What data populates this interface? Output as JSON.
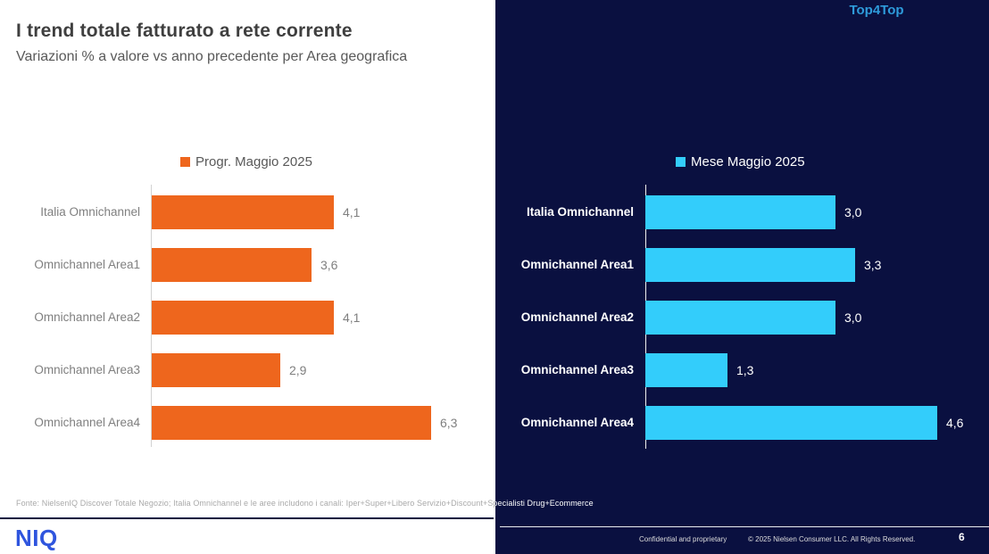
{
  "slide": {
    "title": "I trend totale fatturato a rete corrente",
    "subtitle": "Variazioni % a valore vs anno precedente per Area geografica",
    "badge": "Top4Top",
    "page_number": "6"
  },
  "chart_data": [
    {
      "type": "bar",
      "orientation": "horizontal",
      "title": "Progr. Maggio 2025",
      "legend": "Progr. Maggio 2025",
      "legend_position": "top",
      "categories": [
        "Italia Omnichannel",
        "Omnichannel Area1",
        "Omnichannel Area2",
        "Omnichannel Area3",
        "Omnichannel Area4"
      ],
      "values": [
        4.1,
        3.6,
        4.1,
        2.9,
        6.3
      ],
      "value_labels": [
        "4,1",
        "3,6",
        "4,1",
        "2,9",
        "6,3"
      ],
      "bar_color": "#EE661D",
      "xlabel": "",
      "ylabel": "",
      "xlim": [
        0,
        7
      ],
      "grid": false
    },
    {
      "type": "bar",
      "orientation": "horizontal",
      "title": "Mese Maggio 2025",
      "legend": "Mese Maggio 2025",
      "legend_position": "top",
      "categories": [
        "Italia Omnichannel",
        "Omnichannel Area1",
        "Omnichannel Area2",
        "Omnichannel Area3",
        "Omnichannel Area4"
      ],
      "values": [
        3.0,
        3.3,
        3.0,
        1.3,
        4.6
      ],
      "value_labels": [
        "3,0",
        "3,3",
        "3,0",
        "1,3",
        "4,6"
      ],
      "bar_color": "#33CDFB",
      "xlabel": "",
      "ylabel": "",
      "xlim": [
        0,
        5
      ],
      "grid": false
    }
  ],
  "footer": {
    "fonte": "Fonte: NielsenIQ Discover Totale Negozio; Italia Omnichannel e le aree includono i canali: Iper+Super+Libero Servizio+Discount+Specialisti Drug+Ecommerce",
    "confidential": "Confidential and proprietary",
    "copyright": "© 2025 Nielsen Consumer LLC. All Rights Reserved.",
    "logo": "NIQ"
  },
  "colors": {
    "left_bar_orange": "#EE661D",
    "right_bar_blue": "#33CDFB",
    "dark_panel_navy": "#0A1040",
    "badge_blue": "#2E9BDB",
    "logo_blue": "#2F55DE"
  }
}
